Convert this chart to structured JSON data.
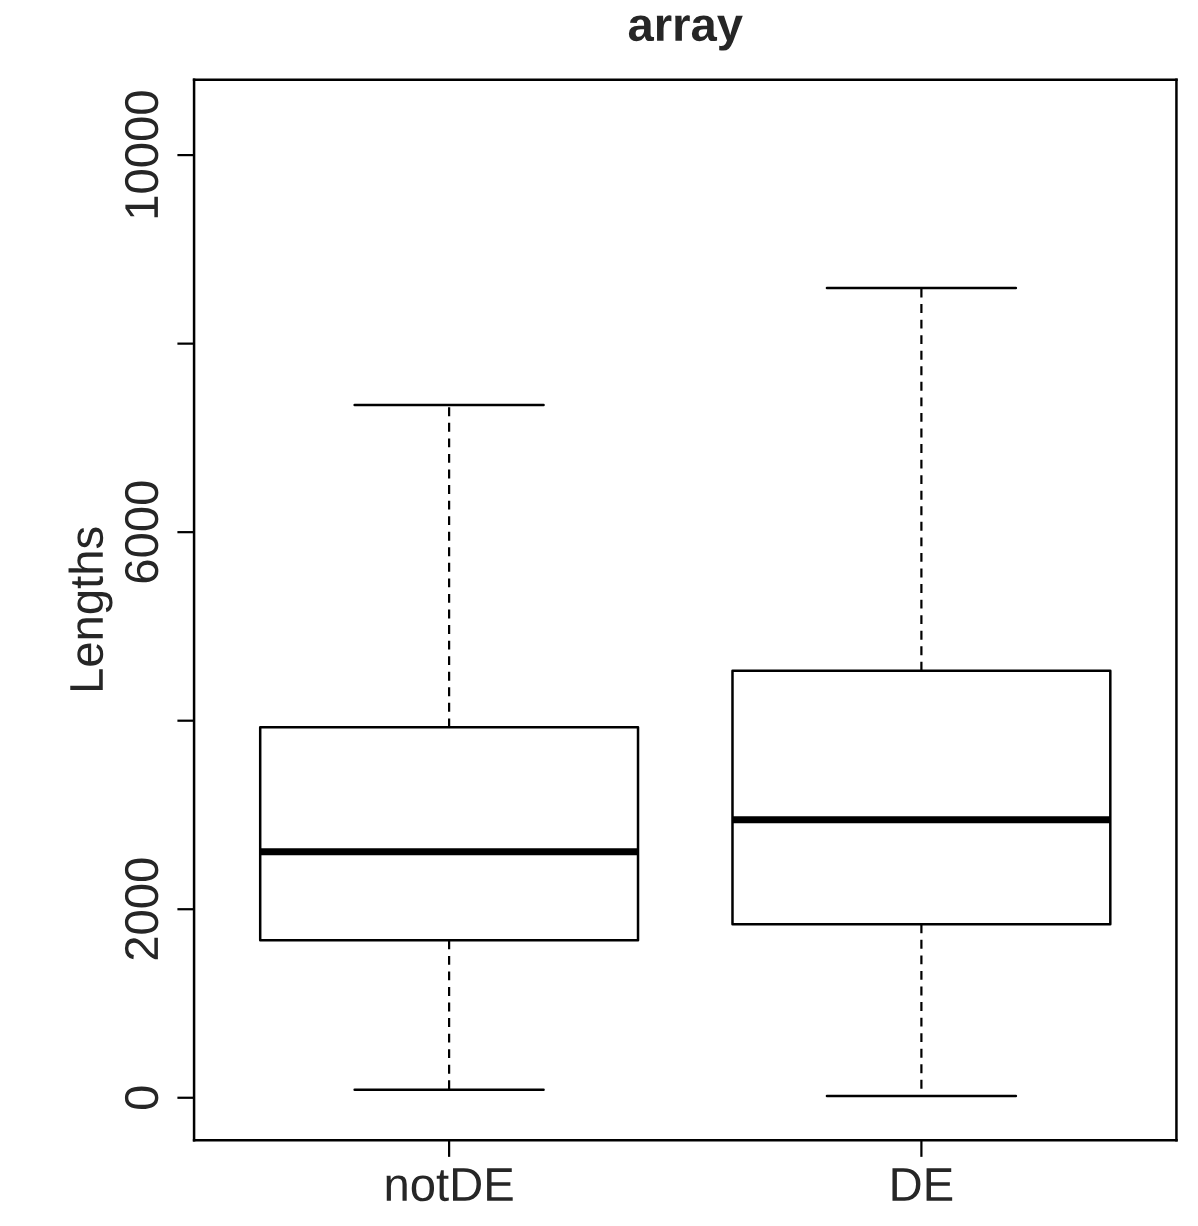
{
  "chart_data": {
    "type": "box",
    "title": "array",
    "ylabel": "Lengths",
    "categories": [
      "notDE",
      "DE"
    ],
    "boxes": [
      {
        "low": 85,
        "q1": 1670,
        "median": 2610,
        "q3": 3930,
        "high": 7350
      },
      {
        "low": 20,
        "q1": 1840,
        "median": 2950,
        "q3": 4530,
        "high": 8590
      }
    ],
    "ylim": [
      -450,
      10800
    ],
    "yticks": [
      0,
      2000,
      {
        "value": 4000,
        "label": null
      },
      6000,
      {
        "value": 8000,
        "label": null
      },
      10000
    ],
    "grid": false,
    "legend": false
  }
}
